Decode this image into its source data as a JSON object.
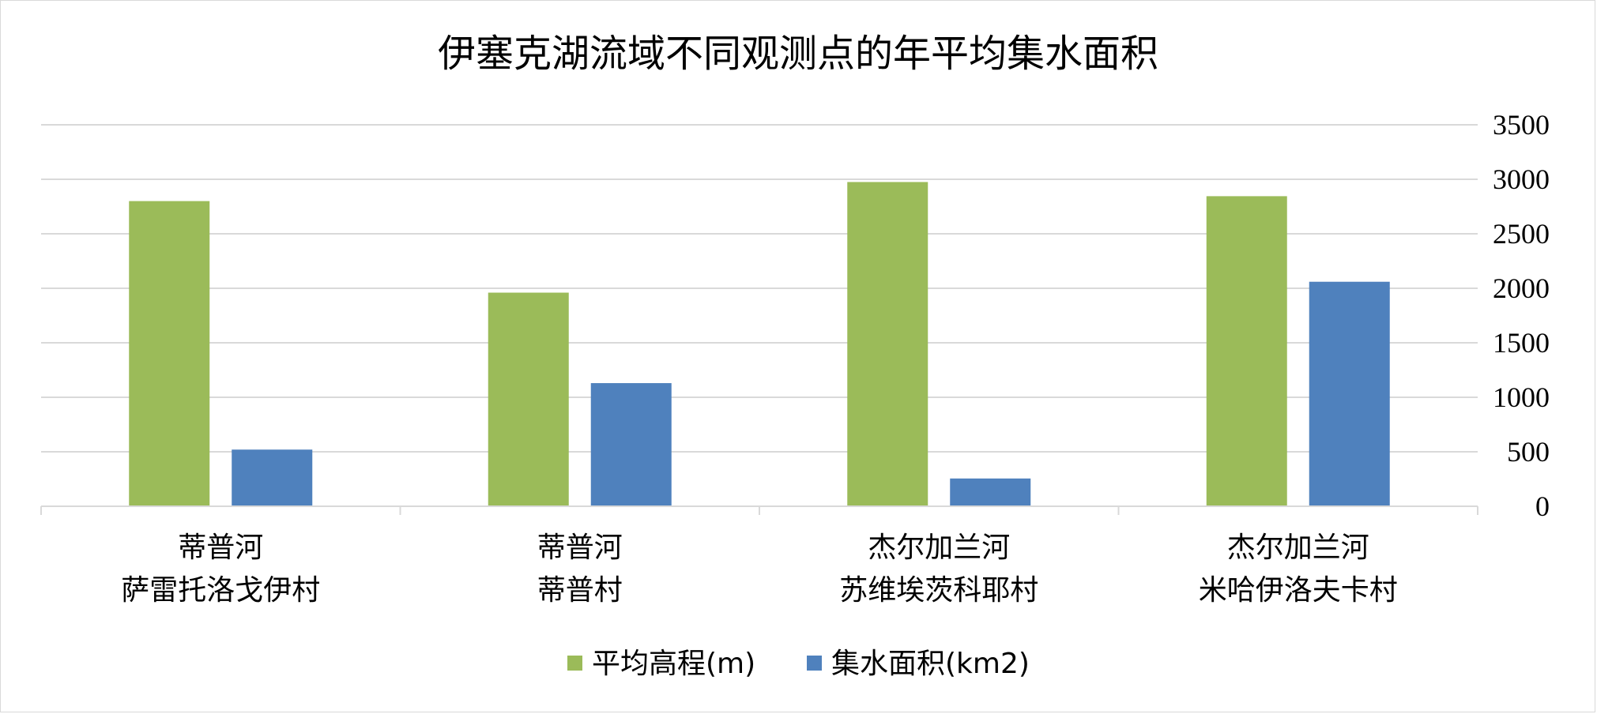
{
  "chart_data": {
    "type": "bar",
    "title": "伊塞克湖流域不同观测点的年平均集水面积",
    "categories": [
      [
        "蒂普河",
        "萨雷托洛戈伊村"
      ],
      [
        "蒂普河",
        "蒂普村"
      ],
      [
        "杰尔加兰河",
        "苏维埃茨科耶村"
      ],
      [
        "杰尔加兰河",
        "米哈伊洛夫卡村"
      ]
    ],
    "series": [
      {
        "name": "平均高程(m)",
        "color": "#9bbb59",
        "values": [
          2800,
          1960,
          2975,
          2845
        ]
      },
      {
        "name": "集水面积(km2)",
        "color": "#4f81bd",
        "values": [
          520,
          1130,
          255,
          2060
        ]
      }
    ],
    "ylim": [
      0,
      3500
    ],
    "yticks": [
      0,
      500,
      1000,
      1500,
      2000,
      2500,
      3000,
      3500
    ],
    "y_axis_position": "right",
    "grid": true,
    "legend_position": "bottom"
  }
}
